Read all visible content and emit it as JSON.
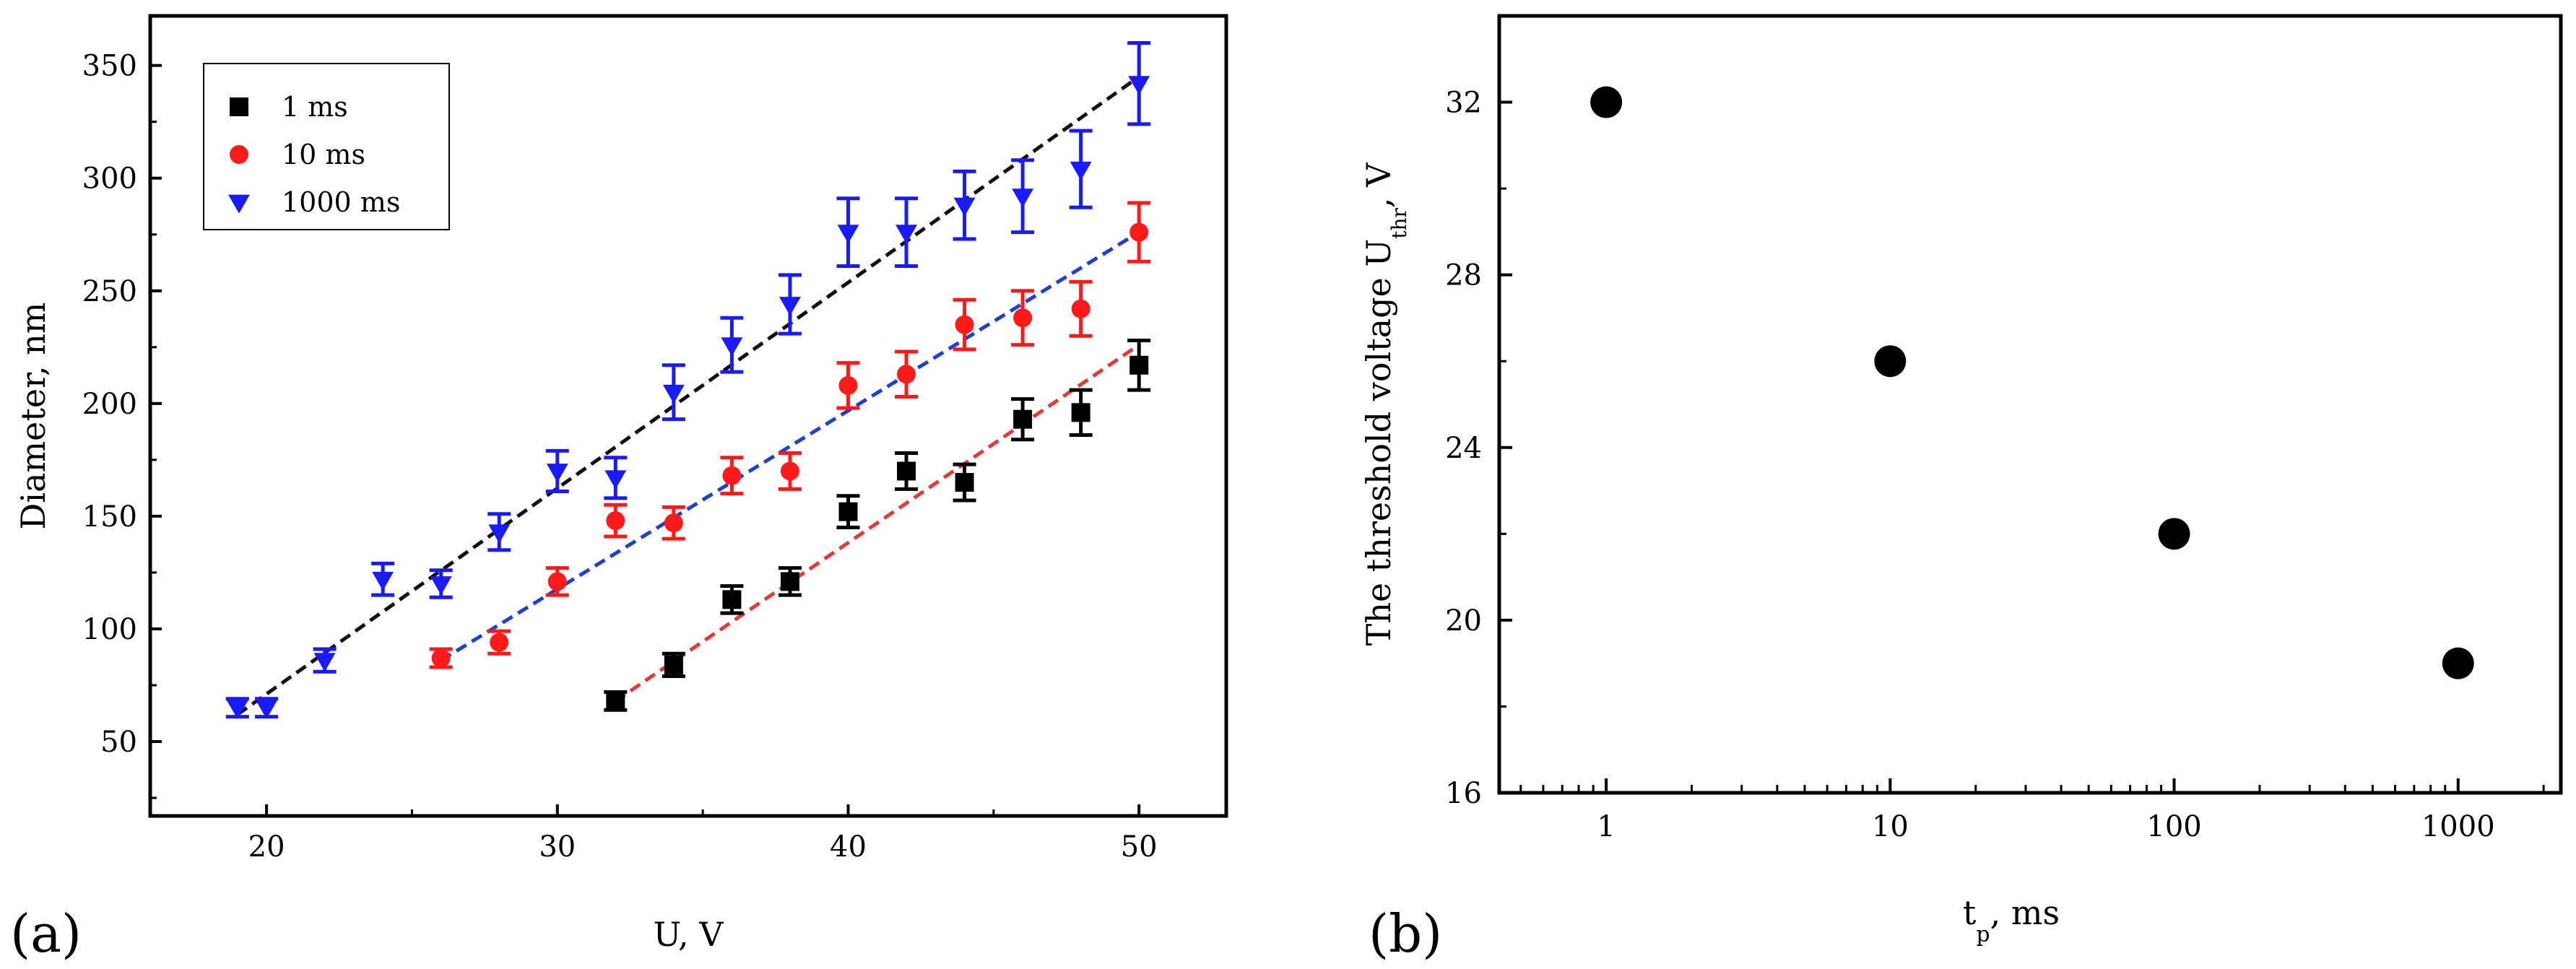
{
  "chart_data": [
    {
      "id": "a",
      "panel_label": "(a)",
      "type": "scatter",
      "xlabel": "U, V",
      "ylabel": "Diameter, nm",
      "xlim": [
        16,
        53
      ],
      "ylim": [
        17,
        372
      ],
      "xticks": [
        20,
        30,
        40,
        50
      ],
      "yticks": [
        50,
        100,
        150,
        200,
        250,
        300,
        350
      ],
      "xtick_labels": [
        "20",
        "30",
        "40",
        "50"
      ],
      "ytick_labels": [
        "50",
        "100",
        "150",
        "200",
        "250",
        "300",
        "350"
      ],
      "legend_position": "top-left",
      "series": [
        {
          "name": "1 ms",
          "color": "#000000",
          "marker": "square",
          "x": [
            32,
            34,
            36,
            38,
            40,
            42,
            44,
            46,
            48,
            50
          ],
          "y": [
            68,
            84,
            113,
            121,
            152,
            170,
            165,
            193,
            196,
            217
          ],
          "yerr": [
            4,
            5,
            6,
            6,
            7,
            8,
            8,
            9,
            10,
            11
          ],
          "fit": {
            "color": "#e53935",
            "x": [
              32,
              50
            ],
            "y": [
              68,
              226
            ]
          }
        },
        {
          "name": "10 ms",
          "color": "#ff1a1a",
          "marker": "circle",
          "x": [
            26,
            28,
            30,
            32,
            34,
            36,
            38,
            40,
            42,
            44,
            46,
            48,
            50
          ],
          "y": [
            87,
            94,
            121,
            148,
            147,
            168,
            170,
            208,
            213,
            235,
            238,
            242,
            276
          ],
          "yerr": [
            4,
            5,
            6,
            7,
            7,
            8,
            8,
            10,
            10,
            11,
            12,
            12,
            13
          ],
          "fit": {
            "color": "#1f3fd1",
            "x": [
              26,
              50
            ],
            "y": [
              86,
              276
            ]
          }
        },
        {
          "name": "1000 ms",
          "color": "#1a1aff",
          "marker": "triangle-down",
          "x": [
            19,
            20,
            22,
            24,
            26,
            28,
            30,
            32,
            34,
            36,
            38,
            40,
            42,
            44,
            46,
            48,
            50
          ],
          "y": [
            65,
            65,
            86,
            122,
            120,
            143,
            170,
            167,
            205,
            226,
            244,
            276,
            276,
            288,
            292,
            304,
            342
          ],
          "yerr": [
            4,
            4,
            5,
            7,
            6,
            8,
            9,
            9,
            12,
            12,
            13,
            15,
            15,
            15,
            16,
            17,
            18
          ],
          "fit": {
            "color": "#111111",
            "x": [
              19,
              50
            ],
            "y": [
              62,
              345
            ]
          }
        }
      ]
    },
    {
      "id": "b",
      "panel_label": "(b)",
      "type": "scatter",
      "x_scale": "log",
      "xlabel_main": "t",
      "xlabel_sub": "p",
      "xlabel_rest": ", ms",
      "ylabel_main": "The threshold voltage U",
      "ylabel_sub": "thr",
      "ylabel_rest": ", V",
      "xlim": [
        0.42,
        2300
      ],
      "ylim": [
        16,
        34
      ],
      "xticks": [
        1,
        10,
        100,
        1000
      ],
      "xtick_labels": [
        "1",
        "10",
        "100",
        "1000"
      ],
      "yticks": [
        16,
        20,
        24,
        28,
        32
      ],
      "ytick_labels": [
        "16",
        "20",
        "24",
        "28",
        "32"
      ],
      "series": [
        {
          "name": "threshold",
          "color": "#000000",
          "marker": "circle",
          "x": [
            1,
            10,
            100,
            1000
          ],
          "y": [
            32,
            26,
            22,
            19
          ]
        }
      ]
    }
  ]
}
